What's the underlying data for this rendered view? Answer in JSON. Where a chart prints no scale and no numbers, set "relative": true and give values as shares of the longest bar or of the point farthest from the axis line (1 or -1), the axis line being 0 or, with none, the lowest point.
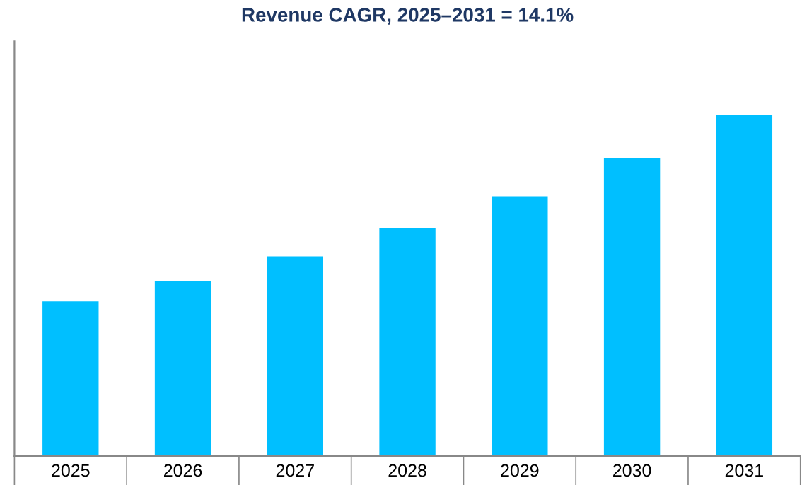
{
  "chart_data": {
    "type": "bar",
    "title": "Revenue CAGR, 2025–2031 = 14.1%",
    "categories": [
      "2025",
      "2026",
      "2027",
      "2028",
      "2029",
      "2030",
      "2031"
    ],
    "values": [
      0.453,
      0.513,
      0.585,
      0.667,
      0.761,
      0.872,
      1.0
    ],
    "color": "#00bfff",
    "relative": true,
    "grid": false,
    "legend": false
  }
}
